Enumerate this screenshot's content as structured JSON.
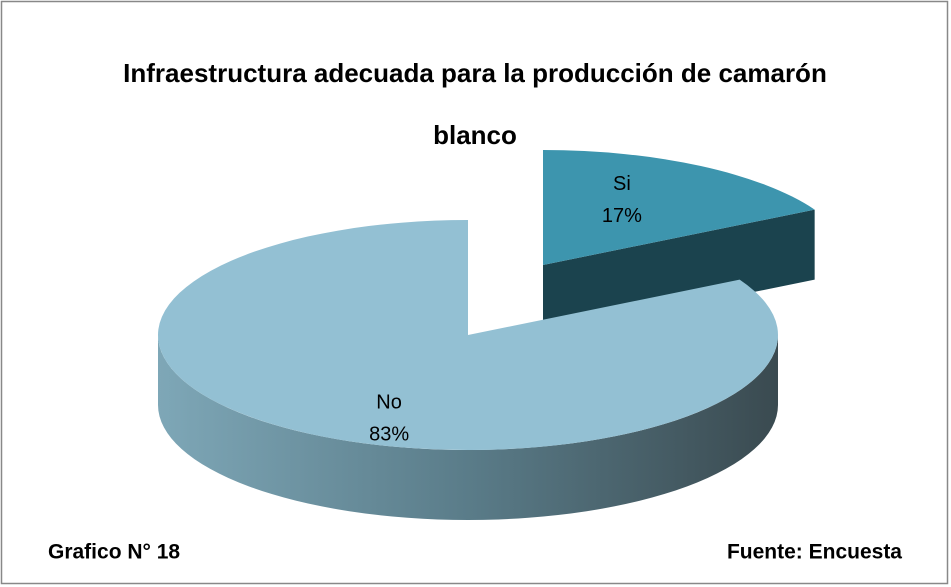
{
  "chart_data": {
    "type": "pie",
    "title": "Infraestructura adecuada para la producción de camarón blanco",
    "categories": [
      "Si",
      "No"
    ],
    "values": [
      17,
      83
    ],
    "value_labels": [
      "17%",
      "83%"
    ],
    "colors": [
      "#3d95ae",
      "#93c0d3"
    ]
  },
  "footer": {
    "left": "Grafico N° 18",
    "right": "Fuente: Encuesta"
  }
}
